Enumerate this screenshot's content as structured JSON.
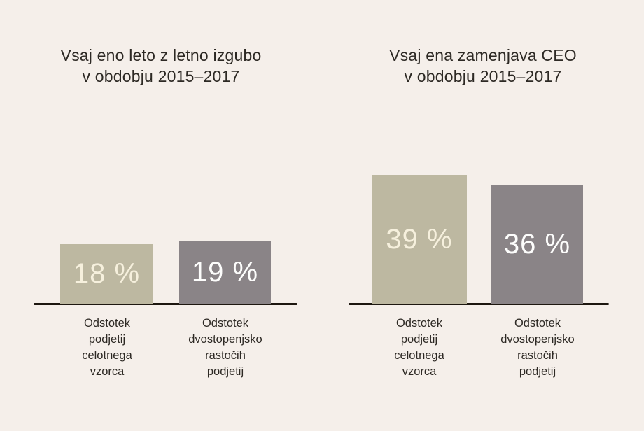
{
  "colors": {
    "background": "#f5efea",
    "axis": "#1d1710",
    "title_text": "#2d2924",
    "category_text": "#2d2924",
    "bar_beige": "#bdb8a1",
    "bar_gray": "#8a8487",
    "value_text_on_beige": "#f6f0dd",
    "value_text_on_gray": "#fdfdfc"
  },
  "chart_data": [
    {
      "type": "bar",
      "title": "Vsaj eno leto z letno izgubo v obdobju 2015–2017",
      "title_lines": [
        "Vsaj eno leto z letno izgubo",
        "v obdobju 2015–2017"
      ],
      "categories": [
        [
          "Odstotek",
          "podjetij",
          "celotnega",
          "vzorca"
        ],
        [
          "Odstotek",
          "dvostopenjsko",
          "rastočih",
          "podjetij"
        ]
      ],
      "values": [
        18,
        19
      ],
      "value_labels": [
        "18 %",
        "19 %"
      ],
      "unit": "%",
      "ylim": [
        0,
        45
      ],
      "grid": false,
      "legend": "none",
      "bar_colors": [
        "#bdb8a1",
        "#8a8487"
      ],
      "value_label_colors": [
        "#f6f0dd",
        "#fdfdfc"
      ]
    },
    {
      "type": "bar",
      "title": "Vsaj ena zamenjava CEO v obdobju 2015–2017",
      "title_lines": [
        "Vsaj ena zamenjava CEO",
        "v obdobju 2015–2017"
      ],
      "categories": [
        [
          "Odstotek",
          "podjetij",
          "celotnega",
          "vzorca"
        ],
        [
          "Odstotek",
          "dvostopenjsko",
          "rastočih",
          "podjetij"
        ]
      ],
      "values": [
        39,
        36
      ],
      "value_labels": [
        "39 %",
        "36 %"
      ],
      "unit": "%",
      "ylim": [
        0,
        45
      ],
      "grid": false,
      "legend": "none",
      "bar_colors": [
        "#bdb8a1",
        "#8a8487"
      ],
      "value_label_colors": [
        "#f6f0dd",
        "#fdfdfc"
      ]
    }
  ]
}
